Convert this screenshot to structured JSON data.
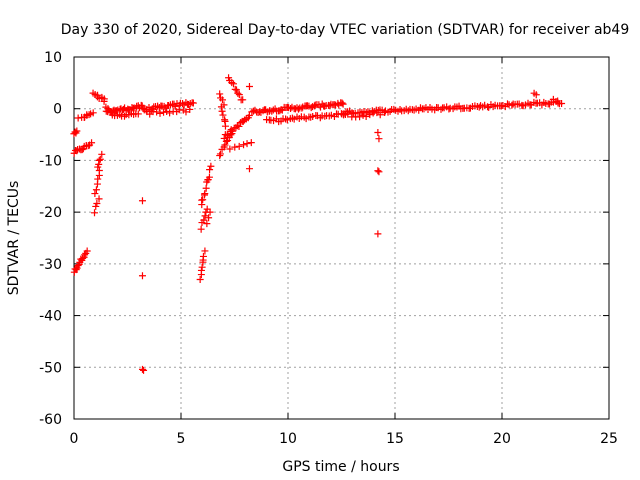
{
  "chart_data": {
    "type": "scatter",
    "title": "Day 330 of 2020, Sidereal Day-to-day VTEC variation (SDTVAR) for receiver ab49",
    "xlabel": "GPS time / hours",
    "ylabel": "SDTVAR / TECUs",
    "xlim": [
      0,
      25
    ],
    "ylim": [
      -60,
      10
    ],
    "xticks": [
      "0",
      "5",
      "10",
      "15",
      "20",
      "25"
    ],
    "yticks": [
      "10",
      "0",
      "-10",
      "-20",
      "-30",
      "-40",
      "-50",
      "-60"
    ],
    "grid": true,
    "marker": "+",
    "series": [
      {
        "name": "SDTVAR",
        "color": "#ff0000",
        "clusters": [
          {
            "x0": 0.0,
            "x1": 0.8,
            "y0": -8.5,
            "y1": -6.8,
            "n": 14
          },
          {
            "x0": 0.0,
            "x1": 0.15,
            "y0": -4.8,
            "y1": -4.2,
            "n": 3
          },
          {
            "x0": 0.2,
            "x1": 0.6,
            "y0": -1.8,
            "y1": -1.4,
            "n": 4
          },
          {
            "x0": 0.0,
            "x1": 0.6,
            "y0": -31.5,
            "y1": -27.5,
            "n": 14
          },
          {
            "x0": 0.6,
            "x1": 0.9,
            "y0": -1.5,
            "y1": -0.8,
            "n": 4
          },
          {
            "x0": 0.95,
            "x1": 1.15,
            "y0": -20.0,
            "y1": -17.5,
            "n": 4
          },
          {
            "x0": 1.0,
            "x1": 1.2,
            "y0": -16.5,
            "y1": -12.0,
            "n": 6
          },
          {
            "x0": 1.1,
            "x1": 1.3,
            "y0": -11.5,
            "y1": -9.0,
            "n": 5
          },
          {
            "x0": 0.9,
            "x1": 1.4,
            "y0": 2.8,
            "y1": 1.6,
            "n": 6
          },
          {
            "x0": 1.4,
            "x1": 1.6,
            "y0": 1.2,
            "y1": 0.0,
            "n": 3
          },
          {
            "x0": 1.5,
            "x1": 3.2,
            "y0": -0.6,
            "y1": 0.4,
            "n": 28
          },
          {
            "x0": 1.8,
            "x1": 3.0,
            "y0": -1.4,
            "y1": -0.9,
            "n": 12
          },
          {
            "x0": 3.2,
            "x1": 5.6,
            "y0": -0.2,
            "y1": 1.2,
            "n": 32
          },
          {
            "x0": 3.4,
            "x1": 5.4,
            "y0": -0.8,
            "y1": -0.4,
            "n": 14
          },
          {
            "x0": 5.9,
            "x1": 6.1,
            "y0": -33.0,
            "y1": -27.5,
            "n": 8
          },
          {
            "x0": 5.95,
            "x1": 6.2,
            "y0": -23.0,
            "y1": -19.5,
            "n": 6
          },
          {
            "x0": 6.2,
            "x1": 6.35,
            "y0": -22.0,
            "y1": -20.0,
            "n": 3
          },
          {
            "x0": 5.95,
            "x1": 6.4,
            "y0": -18.5,
            "y1": -11.5,
            "n": 12
          },
          {
            "x0": 6.8,
            "x1": 7.0,
            "y0": 3.0,
            "y1": 1.0,
            "n": 4
          },
          {
            "x0": 6.9,
            "x1": 7.1,
            "y0": 0.5,
            "y1": -3.5,
            "n": 6
          },
          {
            "x0": 6.8,
            "x1": 7.4,
            "y0": -9.0,
            "y1": -4.5,
            "n": 10
          },
          {
            "x0": 7.0,
            "x1": 8.2,
            "y0": -5.5,
            "y1": -1.5,
            "n": 18
          },
          {
            "x0": 7.2,
            "x1": 7.9,
            "y0": 6.0,
            "y1": 1.5,
            "n": 10
          },
          {
            "x0": 7.3,
            "x1": 8.3,
            "y0": -7.5,
            "y1": -6.5,
            "n": 6
          },
          {
            "x0": 8.3,
            "x1": 12.6,
            "y0": -0.6,
            "y1": 1.0,
            "n": 60
          },
          {
            "x0": 9.0,
            "x1": 12.8,
            "y0": -2.4,
            "y1": -1.0,
            "n": 36
          },
          {
            "x0": 12.5,
            "x1": 22.8,
            "y0": -0.8,
            "y1": 1.2,
            "n": 110
          },
          {
            "x0": 13.0,
            "x1": 14.5,
            "y0": -1.6,
            "y1": -0.8,
            "n": 10
          }
        ],
        "points": [
          [
            3.2,
            -17.8
          ],
          [
            3.2,
            -32.3
          ],
          [
            3.2,
            -50.4
          ],
          [
            3.25,
            -50.6
          ],
          [
            8.2,
            4.3
          ],
          [
            8.2,
            -11.6
          ],
          [
            14.2,
            -4.6
          ],
          [
            14.25,
            -5.8
          ],
          [
            14.2,
            -12.0
          ],
          [
            14.25,
            -12.2
          ],
          [
            14.2,
            -24.2
          ],
          [
            21.5,
            3.0
          ],
          [
            21.6,
            2.7
          ],
          [
            22.4,
            1.8
          ],
          [
            22.6,
            1.5
          ],
          [
            0.05,
            -4.5
          ],
          [
            0.5,
            -1.6
          ],
          [
            1.1,
            2.6
          ],
          [
            1.3,
            2.2
          ]
        ]
      }
    ]
  }
}
